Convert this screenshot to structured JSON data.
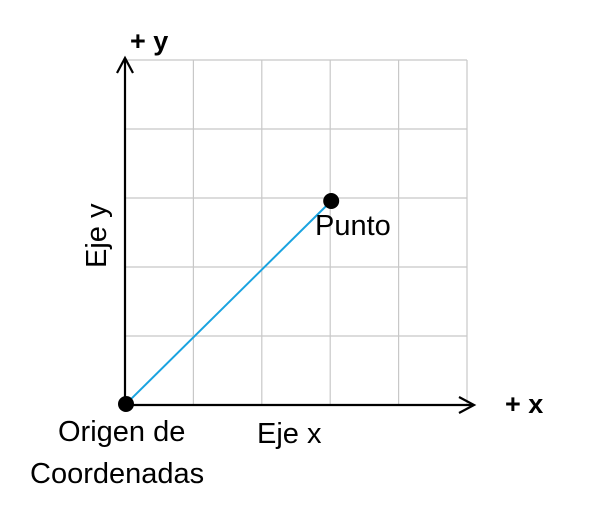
{
  "labels": {
    "plus_y": "+ y",
    "plus_x": "+ x",
    "y_axis": "Eje y",
    "x_axis": "Eje x",
    "point": "Punto",
    "origin_line1": "Origen de",
    "origin_line2": "Coordenadas"
  },
  "grid": {
    "columns": 5,
    "rows": 5
  },
  "point_position": {
    "x": 3,
    "y": 3
  },
  "colors": {
    "grid": "#c8c8c8",
    "axis": "#000000",
    "segment": "#1aa3e0",
    "dot": "#000000"
  }
}
